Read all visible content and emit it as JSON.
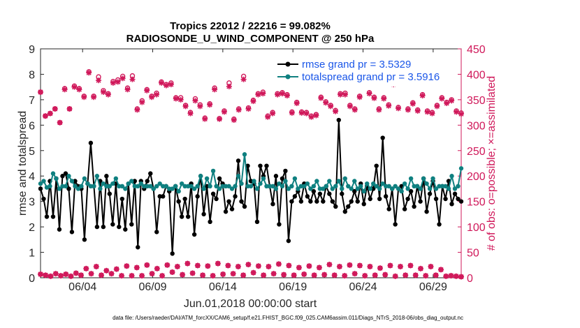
{
  "chart_data": {
    "type": "line",
    "title": "Tropics 22012 / 22216 = 99.082%",
    "subtitle": "RADIOSONDE_U_WIND_COMPONENT @ 250 hPa",
    "xlabel": "Jun.01,2018 00:00:00 start",
    "ylabel_left": "rmse and totalspread",
    "ylabel_right": "# of obs: o=possible; ×=assimilated",
    "footnote": "data file: /Users/raeder/DAI/ATM_forcXX/CAM6_setup/f.e21.FHIST_BGC.f09_025.CAM6assim.011/Diags_NTrS_2018-06/obs_diag_output.nc",
    "x_tick_labels": [
      "06/04",
      "06/09",
      "06/14",
      "06/19",
      "06/24",
      "06/29"
    ],
    "x_tick_days": [
      4,
      9,
      14,
      19,
      24,
      29
    ],
    "xlim_days": [
      1,
      31
    ],
    "ylim_left": [
      0,
      9
    ],
    "ylim_right": [
      0,
      450
    ],
    "y_ticks_left": [
      "0",
      "1",
      "2",
      "3",
      "4",
      "5",
      "6",
      "7",
      "8",
      "9"
    ],
    "y_ticks_right": [
      "0",
      "50",
      "100",
      "150",
      "200",
      "250",
      "300",
      "350",
      "400",
      "450"
    ],
    "colors": {
      "rmse": "#000000",
      "totalspread": "#0f8080",
      "obs": "#d0185a",
      "legend_text": "#1a56e8",
      "axis": "#262626"
    },
    "series": [
      {
        "name": "rmse",
        "legend": "rmse grand pr = 3.5329",
        "values": [
          3.5,
          3.1,
          2.4,
          3.8,
          2.4,
          3.9,
          1.9,
          4.0,
          4.1,
          3.5,
          1.8,
          3.8,
          3.6,
          3.5,
          1.5,
          3.7,
          5.3,
          3.6,
          2.0,
          3.8,
          2.0,
          4.0,
          3.3,
          2.1,
          3.7,
          2.0,
          3.1,
          1.9,
          3.7,
          2.1,
          3.8,
          1.2,
          3.8,
          3.5,
          3.8,
          4.1,
          3.5,
          1.8,
          3.2,
          3.2,
          3.6,
          3.4,
          0.95,
          3.6,
          3.0,
          2.4,
          3.1,
          2.4,
          3.7,
          1.7,
          3.2,
          4.0,
          2.5,
          3.6,
          2.2,
          3.3,
          3.1,
          3.9,
          3.7,
          2.6,
          3.0,
          2.7,
          3.2,
          4.6,
          3.0,
          2.8,
          4.4,
          3.8,
          3.7,
          2.2,
          4.4,
          4.0,
          4.4,
          3.6,
          2.9,
          4.0,
          2.1,
          3.9,
          4.2,
          1.45,
          3.0,
          3.2,
          3.4,
          3.0,
          3.7,
          3.2,
          3.0,
          3.4,
          3.0,
          3.3,
          3.0,
          3.6,
          3.3,
          3.0,
          2.8,
          6.2,
          3.3,
          2.6,
          2.8,
          3.0,
          3.4,
          3.0,
          3.7,
          2.9,
          3.6,
          3.1,
          3.5,
          4.4,
          3.1,
          5.5,
          3.2,
          2.7,
          3.5,
          2.1,
          3.5,
          3.6,
          2.7,
          3.1,
          3.4,
          2.8,
          3.6,
          3.0,
          3.9,
          2.6,
          3.3,
          3.8,
          3.1,
          2.1,
          3.6,
          3.1,
          3.8,
          2.9,
          3.3,
          3.1,
          3.0
        ],
        "scale": "left"
      },
      {
        "name": "totalspread",
        "legend": "totalspread grand pr = 3.5916",
        "values": [
          3.7,
          3.8,
          3.55,
          3.6,
          4.1,
          3.9,
          3.5,
          3.6,
          3.6,
          4.0,
          3.8,
          3.6,
          3.5,
          3.6,
          3.9,
          3.7,
          3.6,
          3.6,
          4.0,
          3.5,
          3.7,
          3.6,
          3.6,
          3.7,
          3.9,
          3.6,
          3.6,
          3.5,
          3.7,
          3.8,
          3.6,
          3.6,
          3.7,
          3.6,
          3.6,
          3.6,
          3.5,
          3.6,
          3.7,
          3.6,
          3.6,
          3.5,
          3.5,
          3.6,
          3.4,
          3.7,
          3.6,
          3.6,
          3.6,
          3.5,
          3.6,
          4.0,
          3.5,
          3.9,
          3.6,
          4.2,
          3.6,
          3.5,
          3.6,
          3.6,
          3.6,
          3.5,
          3.6,
          4.0,
          3.7,
          4.85,
          3.6,
          3.6,
          3.8,
          3.5,
          3.7,
          3.9,
          3.6,
          3.6,
          3.6,
          3.5,
          3.7,
          3.6,
          3.8,
          3.5,
          3.6,
          3.9,
          3.5,
          3.6,
          3.6,
          3.7,
          3.5,
          3.6,
          3.8,
          3.5,
          3.5,
          3.6,
          3.8,
          3.5,
          3.6,
          3.8,
          3.5,
          3.9,
          3.6,
          3.5,
          3.8,
          3.5,
          3.6,
          3.4,
          3.7,
          3.5,
          3.7,
          3.6,
          3.5,
          3.7,
          3.6,
          3.6,
          3.5,
          3.6,
          3.5,
          3.4,
          3.7,
          3.5,
          3.9,
          3.6,
          3.6,
          3.5,
          3.9,
          3.7,
          3.5,
          3.9,
          3.5,
          3.6,
          3.6,
          3.6,
          3.5,
          4.0,
          3.5,
          3.6,
          4.3
        ],
        "scale": "left"
      }
    ],
    "obs_possible": [
      365,
      318,
      323,
      332,
      305,
      372,
      332,
      377,
      372,
      357,
      405,
      357,
      395,
      368,
      362,
      386,
      389,
      396,
      373,
      397,
      332,
      348,
      370,
      357,
      363,
      385,
      380,
      383,
      354,
      354,
      339,
      325,
      352,
      340,
      314,
      342,
      373,
      313,
      328,
      383,
      312,
      332,
      396,
      334,
      349,
      362,
      365,
      318,
      325,
      362,
      364,
      360,
      326,
      345,
      326,
      325,
      318,
      321,
      355,
      346,
      339,
      329,
      362,
      363,
      339,
      332,
      357,
      390,
      364,
      355,
      332,
      354,
      340,
      382,
      335,
      391,
      332,
      344,
      330,
      360,
      328,
      325,
      339,
      354,
      345,
      350,
      328,
      324
    ],
    "obs_possible_days": [
      1.0,
      1.37,
      1.73,
      2.1,
      2.47,
      2.83,
      3.2,
      3.57,
      3.93,
      4.3,
      4.67,
      5.03,
      5.4,
      5.77,
      6.13,
      6.5,
      6.87,
      7.23,
      7.6,
      7.97,
      8.33,
      8.7,
      9.07,
      9.43,
      9.8,
      10.17,
      10.53,
      10.9,
      11.27,
      11.63,
      12.0,
      12.37,
      12.73,
      13.1,
      13.47,
      13.83,
      14.2,
      14.57,
      14.93,
      15.3,
      15.67,
      16.03,
      16.4,
      16.77,
      17.13,
      17.5,
      17.87,
      18.23,
      18.6,
      18.97,
      19.33,
      19.7,
      20.07,
      20.43,
      20.8,
      21.17,
      21.53,
      21.9,
      22.27,
      22.63,
      23.0,
      23.37,
      23.73,
      24.1,
      24.47,
      24.83,
      25.2,
      25.57,
      25.93,
      26.3,
      26.67,
      27.03,
      27.4,
      27.77,
      28.13,
      28.5,
      28.87,
      29.23,
      29.6,
      29.97,
      30.33,
      30.7,
      31.0,
      31.0,
      31.0,
      31.0,
      31.0,
      31.0
    ],
    "obs_assimilated": [
      365,
      318,
      323,
      332,
      305,
      370,
      332,
      375,
      370,
      355,
      403,
      355,
      388,
      365,
      360,
      383,
      385,
      392,
      370,
      390,
      330,
      345,
      368,
      355,
      360,
      383,
      378,
      380,
      352,
      350,
      337,
      323,
      348,
      337,
      312,
      340,
      370,
      312,
      326,
      376,
      310,
      330,
      390,
      332,
      347,
      360,
      362,
      316,
      323,
      360,
      362,
      358,
      324,
      343,
      324,
      323,
      316,
      319,
      353,
      344,
      337,
      327,
      360,
      360,
      337,
      330,
      355,
      385,
      362,
      353,
      330,
      352,
      338,
      380,
      333,
      388,
      330,
      342,
      328,
      358,
      326,
      323,
      337,
      352,
      343,
      348,
      326,
      322
    ],
    "obs_small_possible": [
      7,
      5,
      3,
      8,
      4,
      7,
      3,
      9,
      5,
      18,
      8,
      22,
      5,
      14,
      8,
      17,
      4,
      23,
      4,
      20,
      4,
      25,
      8,
      18,
      4,
      25,
      11,
      22,
      6,
      28,
      9,
      24,
      5,
      23,
      4,
      28,
      7,
      24,
      8,
      22,
      5,
      26,
      10,
      23,
      5,
      22,
      8,
      27,
      6,
      24,
      5,
      20,
      7,
      23,
      5,
      20,
      6,
      26,
      5,
      22,
      4,
      25,
      8,
      24,
      4,
      22,
      5,
      19,
      6,
      24,
      3,
      22,
      5,
      24,
      5,
      18,
      4,
      22,
      5,
      16,
      3,
      4,
      3,
      2
    ],
    "obs_small_assimilated": [
      7,
      5,
      3,
      8,
      4,
      7,
      3,
      9,
      5,
      18,
      8,
      22,
      5,
      14,
      8,
      17,
      4,
      23,
      4,
      20,
      4,
      25,
      8,
      18,
      4,
      25,
      11,
      22,
      6,
      28,
      9,
      24,
      5,
      23,
      4,
      28,
      7,
      24,
      8,
      22,
      5,
      26,
      10,
      23,
      5,
      22,
      8,
      27,
      6,
      24,
      5,
      20,
      7,
      23,
      5,
      20,
      6,
      26,
      5,
      22,
      4,
      25,
      8,
      24,
      4,
      22,
      5,
      19,
      6,
      24,
      3,
      22,
      5,
      24,
      5,
      18,
      4,
      22,
      5,
      16,
      3,
      4,
      3,
      2
    ]
  }
}
